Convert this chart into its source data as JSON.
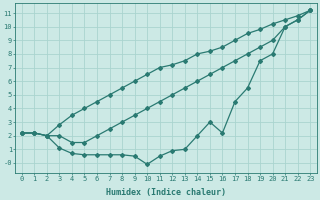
{
  "xlabel": "Humidex (Indice chaleur)",
  "bg_color": "#cce9e5",
  "grid_color": "#aad4cf",
  "line_color": "#2a7a72",
  "xlim": [
    -0.5,
    23.5
  ],
  "ylim": [
    -0.7,
    11.7
  ],
  "xticks": [
    0,
    1,
    2,
    3,
    4,
    5,
    6,
    7,
    8,
    9,
    10,
    11,
    12,
    13,
    14,
    15,
    16,
    17,
    18,
    19,
    20,
    21,
    22,
    23
  ],
  "yticks": [
    0,
    1,
    2,
    3,
    4,
    5,
    6,
    7,
    8,
    9,
    10,
    11
  ],
  "ytick_labels": [
    "-0",
    "1",
    "2",
    "3",
    "4",
    "5",
    "6",
    "7",
    "8",
    "9",
    "10",
    "11"
  ],
  "series": [
    {
      "x": [
        0,
        1,
        2,
        3,
        4,
        5,
        6,
        7,
        8,
        9,
        10,
        11,
        12,
        13,
        14,
        15,
        16,
        17,
        18,
        19,
        20,
        21,
        22,
        23
      ],
      "y": [
        2.2,
        2.2,
        2.0,
        2.8,
        3.5,
        4.0,
        4.5,
        5.0,
        5.5,
        6.0,
        6.5,
        7.0,
        7.2,
        7.5,
        8.0,
        8.2,
        8.5,
        9.0,
        9.5,
        9.8,
        10.2,
        10.5,
        10.8,
        11.2
      ]
    },
    {
      "x": [
        0,
        1,
        2,
        3,
        4,
        5,
        6,
        7,
        8,
        9,
        10,
        11,
        12,
        13,
        14,
        15,
        16,
        17,
        18,
        19,
        20,
        21,
        22,
        23
      ],
      "y": [
        2.2,
        2.2,
        2.0,
        2.0,
        1.5,
        1.5,
        2.0,
        2.5,
        3.0,
        3.5,
        4.0,
        4.5,
        5.0,
        5.5,
        6.0,
        6.5,
        7.0,
        7.5,
        8.0,
        8.5,
        9.0,
        10.0,
        10.5,
        11.2
      ]
    },
    {
      "x": [
        0,
        1,
        2,
        3,
        4,
        5,
        6,
        7,
        8,
        9,
        10,
        11,
        12,
        13,
        14,
        15,
        16,
        17,
        18,
        19,
        20,
        21,
        22,
        23
      ],
      "y": [
        2.2,
        2.2,
        2.0,
        1.1,
        0.7,
        0.6,
        0.6,
        0.6,
        0.6,
        0.5,
        -0.1,
        0.5,
        0.9,
        1.0,
        2.0,
        3.0,
        2.2,
        4.5,
        5.5,
        7.5,
        8.0,
        10.0,
        10.5,
        11.2
      ]
    }
  ]
}
